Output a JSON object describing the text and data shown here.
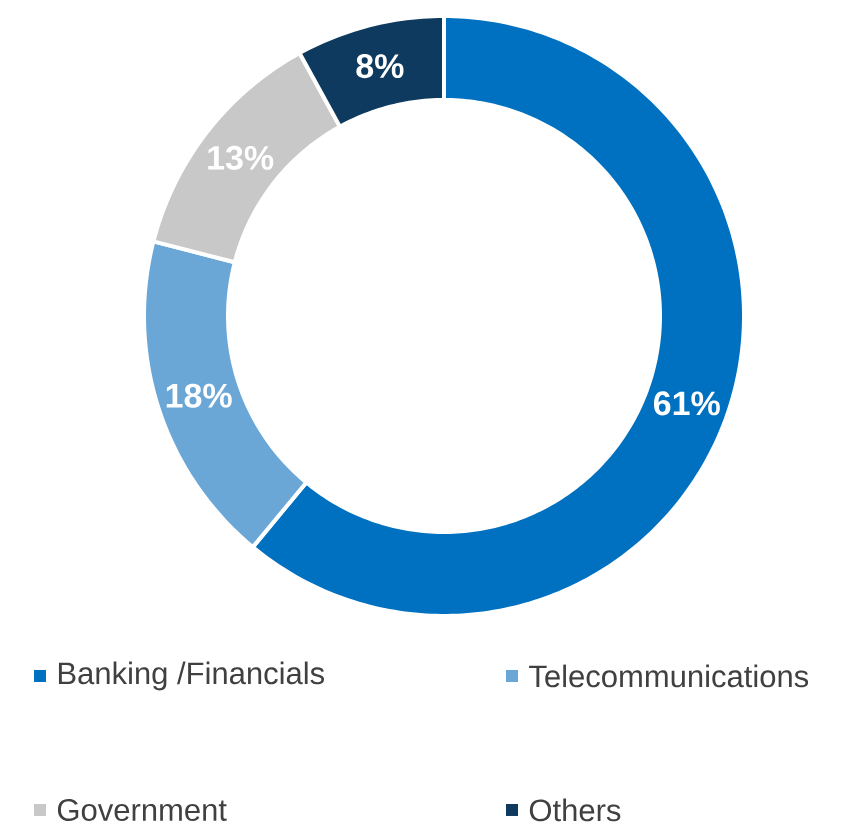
{
  "chart_data": {
    "type": "donut",
    "categories": [
      "Banking /Financials",
      "Telecommunications",
      "Government",
      "Others"
    ],
    "values": [
      61,
      18,
      13,
      8
    ],
    "colors": [
      "#0070c0",
      "#6aa7d7",
      "#c8c8c8",
      "#0d3a5e"
    ],
    "value_labels": [
      "61%",
      "18%",
      "13%",
      "8%"
    ],
    "legend": "bottom"
  }
}
